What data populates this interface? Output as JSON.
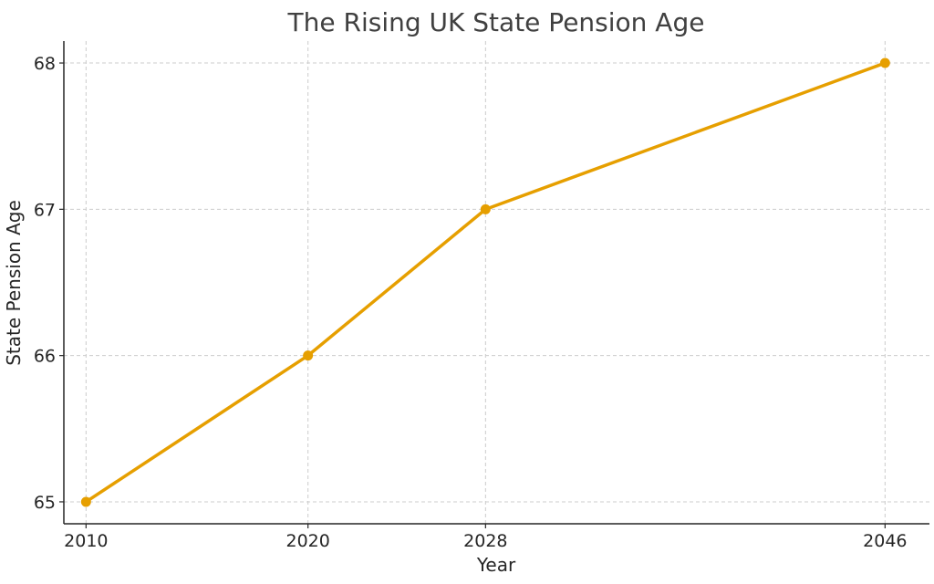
{
  "chart_data": {
    "type": "line",
    "title": "The Rising UK State Pension Age",
    "xlabel": "Year",
    "ylabel": "State Pension Age",
    "x": [
      2010,
      2020,
      2028,
      2046
    ],
    "series": [
      {
        "values": [
          65,
          66,
          67,
          68
        ],
        "color": "#E69F00"
      }
    ],
    "xlim": [
      2009,
      2048
    ],
    "ylim": [
      64.85,
      68.15
    ],
    "xticks": [
      2010,
      2020,
      2028,
      2046
    ],
    "yticks": [
      65,
      66,
      67,
      68
    ],
    "grid": true,
    "legend": "none"
  }
}
